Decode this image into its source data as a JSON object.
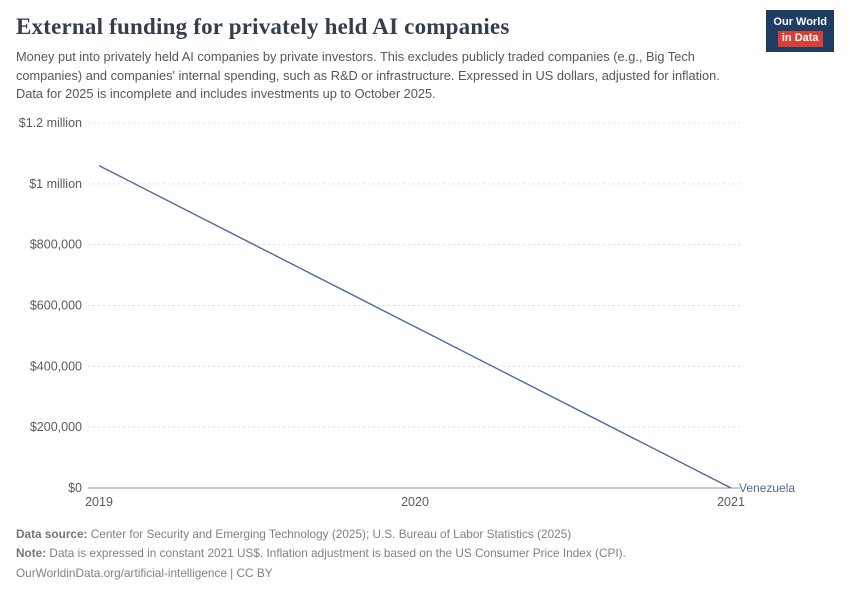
{
  "header": {
    "title": "External funding for privately held AI companies",
    "subtitle": "Money put into privately held AI companies by private investors. This excludes publicly traded companies (e.g., Big Tech companies) and companies' internal spending, such as R&D or infrastructure. Expressed in US dollars, adjusted for inflation. Data for 2025 is incomplete and includes investments up to October 2025.",
    "logo": {
      "line1": "Our World",
      "line2": "in Data"
    }
  },
  "chart_data": {
    "type": "line",
    "title": "External funding for privately held AI companies",
    "x": [
      2019,
      2020,
      2021
    ],
    "x_ticks": [
      "2019",
      "2020",
      "2021"
    ],
    "series": [
      {
        "name": "Venezuela",
        "values": [
          1060000,
          530000,
          0
        ],
        "color": "#4c6a9c"
      }
    ],
    "y_ticks": [
      {
        "value": 0,
        "label": "$0"
      },
      {
        "value": 200000,
        "label": "$200,000"
      },
      {
        "value": 400000,
        "label": "$400,000"
      },
      {
        "value": 600000,
        "label": "$600,000"
      },
      {
        "value": 800000,
        "label": "$800,000"
      },
      {
        "value": 1000000,
        "label": "$1 million"
      },
      {
        "value": 1200000,
        "label": "$1.2 million"
      }
    ],
    "xlim": [
      2019,
      2021
    ],
    "ylim": [
      0,
      1200000
    ],
    "grid": "horizontal-dashed",
    "legend_position": "end-of-line-label"
  },
  "footer": {
    "source_label": "Data source:",
    "source_text": " Center for Security and Emerging Technology (2025); U.S. Bureau of Labor Statistics (2025)",
    "note_label": "Note:",
    "note_text": " Data is expressed in constant 2021 US$. Inflation adjustment is based on the US Consumer Price Index (CPI).",
    "url_line": "OurWorldinData.org/artificial-intelligence | CC BY"
  },
  "colors": {
    "accent_blue": "#4c6a9c",
    "grid": "#dcdcdc",
    "axis": "#9a9a9a",
    "logo_bg": "#1d3d63",
    "logo_red": "#dc3e34"
  }
}
